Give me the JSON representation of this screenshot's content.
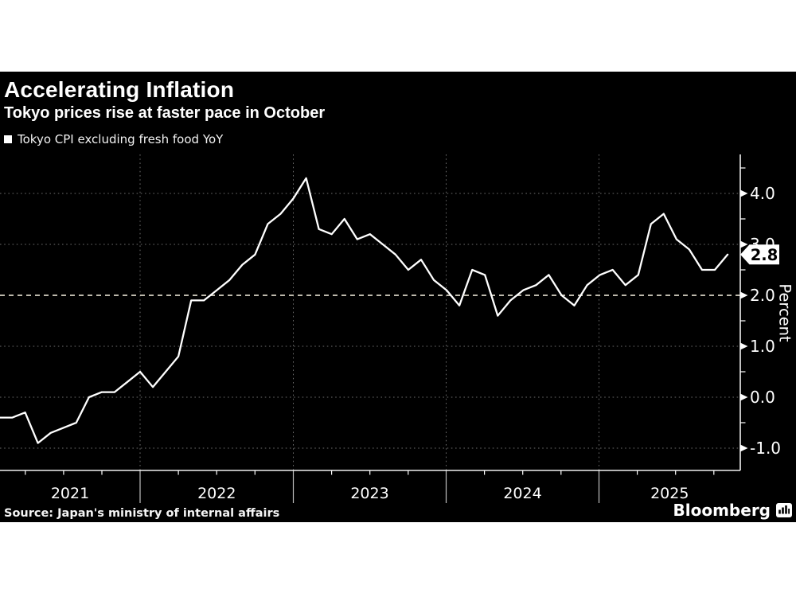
{
  "header": {
    "title": "Accelerating Inflation",
    "subtitle": "Tokyo prices rise at faster pace in October"
  },
  "footer": {
    "source": "Source: Japan's ministry of internal affairs",
    "brand": "Bloomberg"
  },
  "colors": {
    "page_background": "#ffffff",
    "panel_background": "#000000",
    "line": "#ffffff",
    "grid": "rgba(255,255,255,0.42)",
    "target_line": "#bdb9ac",
    "axis": "#f0f0f0",
    "year_divider": "rgba(255,255,255,0.75)",
    "tag_background": "#ffffff",
    "tag_text": "#000000"
  },
  "chart_data": {
    "type": "line",
    "title": "Accelerating Inflation",
    "subtitle": "Tokyo prices rise at faster pace in October",
    "legend": [
      "Tokyo CPI excluding fresh food YoY"
    ],
    "legend_position": "top-left",
    "grid": "dotted horizontal and vertical year gridlines",
    "y_axis": {
      "label": "Percent",
      "side": "right",
      "ylim": [
        -1.45,
        4.75
      ],
      "major_ticks": [
        4.0,
        3.0,
        2.0,
        1.0,
        0.0,
        -1.0
      ],
      "major_tick_labels": [
        "4.0",
        "3.0",
        "2.0",
        "1.0",
        "0.0",
        "-1.0"
      ],
      "minor_ticks": [
        4.5,
        3.5,
        2.5,
        1.5,
        0.5,
        -0.5
      ]
    },
    "x_axis": {
      "year_labels": [
        "2021",
        "2022",
        "2023",
        "2024",
        "2025"
      ],
      "minor_tick_interval": "quarterly"
    },
    "target_line": {
      "value": 2.0,
      "style": "dashed"
    },
    "last_point": {
      "label": "2.8",
      "value": 2.8,
      "month": "2025-10"
    },
    "series": [
      {
        "name": "Tokyo CPI excluding fresh food YoY",
        "unit": "percent YoY",
        "frequency": "monthly",
        "start_month": "2021-01",
        "end_month": "2025-10",
        "values": [
          -0.4,
          -0.4,
          -0.3,
          -0.9,
          -0.7,
          -0.6,
          -0.5,
          0.0,
          0.1,
          0.1,
          0.3,
          0.5,
          0.2,
          0.5,
          0.8,
          1.9,
          1.9,
          2.1,
          2.3,
          2.6,
          2.8,
          3.4,
          3.6,
          3.9,
          4.3,
          3.3,
          3.2,
          3.5,
          3.1,
          3.2,
          3.0,
          2.8,
          2.5,
          2.7,
          2.3,
          2.1,
          1.8,
          2.5,
          2.4,
          1.6,
          1.9,
          2.1,
          2.2,
          2.4,
          2.0,
          1.8,
          2.2,
          2.4,
          2.5,
          2.2,
          2.4,
          3.4,
          3.6,
          3.1,
          2.9,
          2.5,
          2.5,
          2.8
        ]
      }
    ]
  }
}
